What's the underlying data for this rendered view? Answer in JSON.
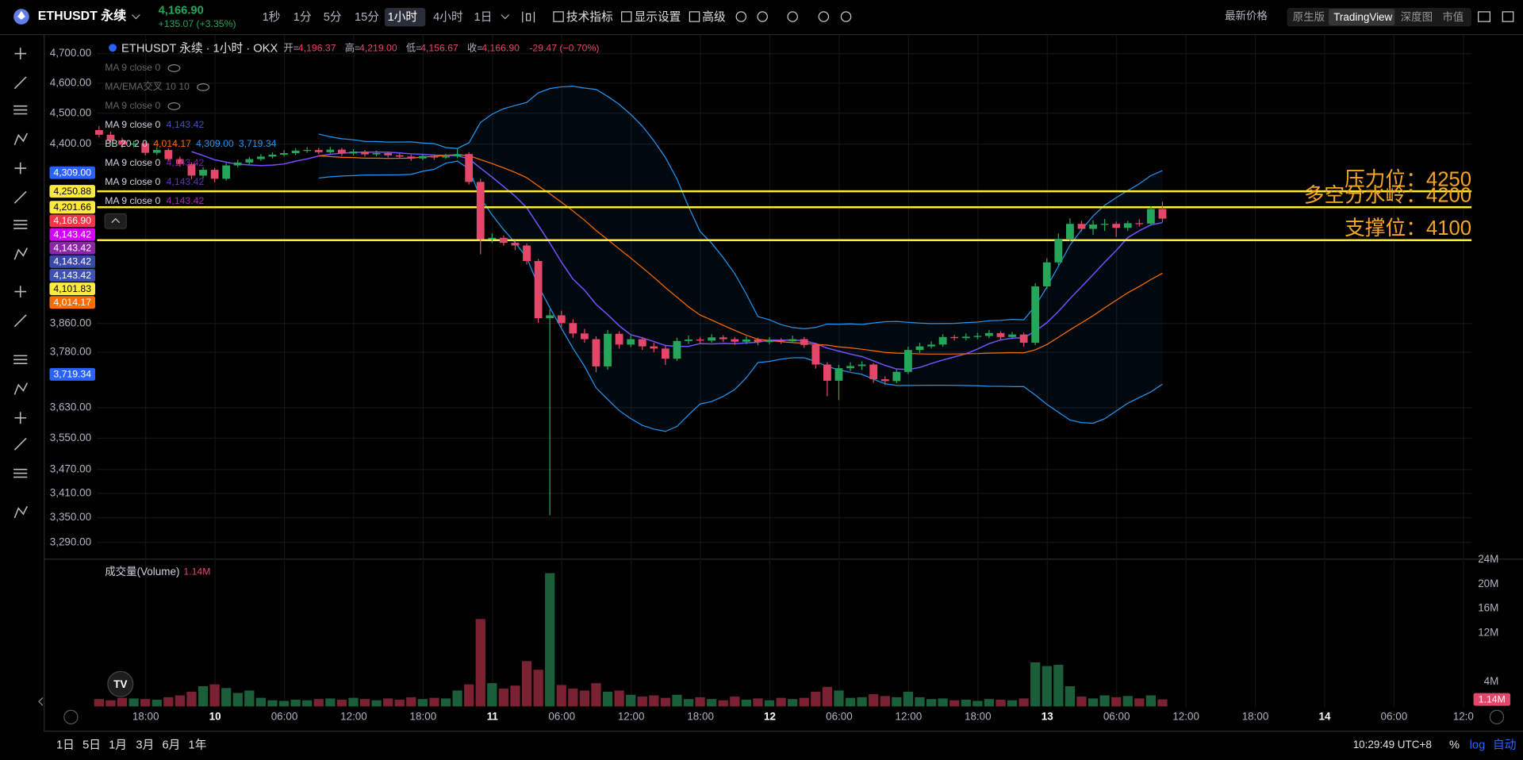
{
  "toolbar": {
    "symbol": "ETHUSDT 永续",
    "price": "4,166.90",
    "change": "+135.07 (+3.35%)",
    "intervals": [
      "1秒",
      "1分",
      "5分",
      "15分",
      "1小时",
      "4小时",
      "1日"
    ],
    "active_interval": "1小时",
    "tools": [
      "技术指标",
      "显示设置",
      "高级"
    ],
    "price_source": "最新价格",
    "views": [
      "原生版",
      "TradingView",
      "深度图",
      "市值"
    ],
    "active_view": "TradingView"
  },
  "legend": {
    "title": "ETHUSDT 永续 · 1小时 · OKX",
    "ohlc": [
      {
        "key": "开=",
        "value": "4,196.37"
      },
      {
        "key": "高=",
        "value": "4,219.00"
      },
      {
        "key": "低=",
        "value": "4,156.67"
      },
      {
        "key": "收=",
        "value": "4,166.90"
      }
    ],
    "change": "-29.47 (−0.70%)",
    "indicators": [
      {
        "text": "MA 9 close 0",
        "hidden": true
      },
      {
        "text": "MA/EMA交叉 10 10",
        "hidden": true
      },
      {
        "text": "MA 9 close 0",
        "hidden": true
      },
      {
        "text": "MA 9 close 0",
        "values": [
          {
            "label": "4,143.42",
            "color": "#3f51b5"
          }
        ]
      },
      {
        "text": "BB 20 2 0",
        "values": [
          {
            "label": "4,014.17",
            "color": "#ff6d00"
          },
          {
            "label": "4,309.00",
            "color": "#2196f3"
          },
          {
            "label": "3,719.34",
            "color": "#2196f3"
          }
        ]
      },
      {
        "text": "MA 9 close 0",
        "values": [
          {
            "label": "4,143.42",
            "color": "#7b1fa2"
          }
        ]
      },
      {
        "text": "MA 9 close 0",
        "values": [
          {
            "label": "4,143.42",
            "color": "#5e35b1"
          }
        ]
      },
      {
        "text": "MA 9 close 0",
        "values": [
          {
            "label": "4,143.42",
            "color": "#9c27b0"
          }
        ]
      }
    ]
  },
  "volume_legend": {
    "title": "成交量(Volume)",
    "value": "1.14M"
  },
  "bottom": {
    "ranges": [
      "1日",
      "5日",
      "1月",
      "3月",
      "6月",
      "1年"
    ],
    "clock": "10:29:49 UTC+8",
    "options": [
      "%",
      "log",
      "自动"
    ]
  },
  "chart_data": {
    "type": "candlestick",
    "log_scale": true,
    "grid": true,
    "up_color": "#26a65b",
    "down_color": "#e5476a",
    "volume_up_color": "#1b5e3a",
    "volume_down_color": "#7a2232",
    "ylim": [
      3251,
      4764
    ],
    "yticks": [
      {
        "value": 4700,
        "label": "4,700.00"
      },
      {
        "value": 4600,
        "label": "4,600.00"
      },
      {
        "value": 4500,
        "label": "4,500.00"
      },
      {
        "value": 4400,
        "label": "4,400.00"
      },
      {
        "value": 3860,
        "label": "3,860.00"
      },
      {
        "value": 3780,
        "label": "3,780.00"
      },
      {
        "value": 3630,
        "label": "3,630.00"
      },
      {
        "value": 3550,
        "label": "3,550.00"
      },
      {
        "value": 3470,
        "label": "3,470.00"
      },
      {
        "value": 3410,
        "label": "3,410.00"
      },
      {
        "value": 3350,
        "label": "3,350.00"
      },
      {
        "value": 3290,
        "label": "3,290.00"
      }
    ],
    "xticks": [
      "18:00",
      "10",
      "06:00",
      "12:00",
      "18:00",
      "11",
      "06:00",
      "12:00",
      "18:00",
      "12",
      "06:00",
      "12:00",
      "18:00",
      "13",
      "06:00",
      "12:00",
      "18:00",
      "14",
      "06:00",
      "12:0"
    ],
    "hlines": [
      {
        "text": "压力位：4250",
        "price": {
          "value": 4250.88,
          "label": "4,250.88"
        },
        "color": "#ffeb3b"
      },
      {
        "text": "多空分水岭：4200",
        "price": {
          "value": 4201.66,
          "label": "4,201.66"
        },
        "color": "#ffeb3b"
      },
      {
        "text": "支撑位：4100",
        "price": {
          "value": 4101.83,
          "label": "4,101.83"
        },
        "color": "#ffeb3b"
      }
    ],
    "annotation_color": "#f5a623",
    "price_badges": [
      {
        "value": 4309,
        "label": "4,309.00",
        "color": "#2962ff"
      },
      {
        "value": 4166.9,
        "label": "4,166.90",
        "color": "#f23645"
      },
      {
        "value": 4143.42,
        "label": "4,143.42",
        "color": "#d500f9"
      },
      {
        "value": 4143.42,
        "label": "4,143.42",
        "color": "#8e24aa"
      },
      {
        "value": 4143.42,
        "label": "4,143.42",
        "color": "#3949ab"
      },
      {
        "value": 4143.42,
        "label": "4,143.42",
        "color": "#3f51b5"
      },
      {
        "value": 4014.17,
        "label": "4,014.17",
        "color": "#ff6d00"
      },
      {
        "value": 3719.34,
        "label": "3,719.34",
        "color": "#2962ff"
      }
    ],
    "indicators": [
      {
        "kind": "ma",
        "period": 9,
        "color": "#7c4dff"
      },
      {
        "kind": "bb",
        "period": 20,
        "mult": 2,
        "color": "#2196f3",
        "basis_color": "#ff6d00"
      }
    ],
    "ohlc": [
      [
        4445,
        4458,
        4422,
        4430
      ],
      [
        4430,
        4440,
        4402,
        4412
      ],
      [
        4412,
        4420,
        4388,
        4398
      ],
      [
        4398,
        4411,
        4390,
        4402
      ],
      [
        4402,
        4408,
        4364,
        4372
      ],
      [
        4372,
        4390,
        4365,
        4381
      ],
      [
        4381,
        4386,
        4344,
        4352
      ],
      [
        4352,
        4360,
        4328,
        4336
      ],
      [
        4336,
        4342,
        4288,
        4300
      ],
      [
        4300,
        4326,
        4292,
        4318
      ],
      [
        4318,
        4324,
        4279,
        4290
      ],
      [
        4290,
        4340,
        4284,
        4332
      ],
      [
        4332,
        4350,
        4326,
        4341
      ],
      [
        4341,
        4359,
        4335,
        4352
      ],
      [
        4352,
        4368,
        4346,
        4360
      ],
      [
        4360,
        4374,
        4354,
        4366
      ],
      [
        4366,
        4380,
        4360,
        4371
      ],
      [
        4371,
        4386,
        4365,
        4379
      ],
      [
        4379,
        4390,
        4372,
        4381
      ],
      [
        4381,
        4388,
        4368,
        4374
      ],
      [
        4374,
        4391,
        4369,
        4382
      ],
      [
        4382,
        4388,
        4362,
        4370
      ],
      [
        4370,
        4384,
        4364,
        4376
      ],
      [
        4376,
        4381,
        4360,
        4367
      ],
      [
        4367,
        4379,
        4361,
        4371
      ],
      [
        4371,
        4376,
        4357,
        4364
      ],
      [
        4364,
        4370,
        4354,
        4360
      ],
      [
        4360,
        4366,
        4347,
        4354
      ],
      [
        4354,
        4369,
        4349,
        4362
      ],
      [
        4362,
        4367,
        4350,
        4357
      ],
      [
        4357,
        4369,
        4352,
        4361
      ],
      [
        4361,
        4386,
        4355,
        4368
      ],
      [
        4368,
        4374,
        4272,
        4280
      ],
      [
        4280,
        4290,
        4060,
        4105
      ],
      [
        4105,
        4122,
        4094,
        4109
      ],
      [
        4109,
        4116,
        4086,
        4094
      ],
      [
        4094,
        4101,
        4072,
        4086
      ],
      [
        4086,
        4092,
        4030,
        4040
      ],
      [
        4040,
        4046,
        3862,
        3875
      ],
      [
        3875,
        3900,
        3356,
        3883
      ],
      [
        3883,
        3896,
        3850,
        3861
      ],
      [
        3861,
        3872,
        3820,
        3832
      ],
      [
        3832,
        3845,
        3806,
        3816
      ],
      [
        3816,
        3824,
        3725,
        3741
      ],
      [
        3741,
        3842,
        3732,
        3831
      ],
      [
        3831,
        3838,
        3790,
        3801
      ],
      [
        3801,
        3826,
        3794,
        3816
      ],
      [
        3816,
        3822,
        3786,
        3796
      ],
      [
        3796,
        3806,
        3780,
        3790
      ],
      [
        3790,
        3798,
        3745,
        3762
      ],
      [
        3762,
        3820,
        3756,
        3811
      ],
      [
        3811,
        3826,
        3803,
        3815
      ],
      [
        3815,
        3822,
        3804,
        3812
      ],
      [
        3812,
        3830,
        3806,
        3821
      ],
      [
        3821,
        3827,
        3808,
        3816
      ],
      [
        3816,
        3822,
        3800,
        3809
      ],
      [
        3809,
        3824,
        3802,
        3815
      ],
      [
        3815,
        3820,
        3799,
        3808
      ],
      [
        3808,
        3822,
        3802,
        3813
      ],
      [
        3813,
        3819,
        3803,
        3810
      ],
      [
        3810,
        3826,
        3805,
        3816
      ],
      [
        3816,
        3822,
        3792,
        3800
      ],
      [
        3800,
        3806,
        3735,
        3746
      ],
      [
        3746,
        3752,
        3660,
        3702
      ],
      [
        3702,
        3745,
        3650,
        3736
      ],
      [
        3736,
        3752,
        3728,
        3742
      ],
      [
        3742,
        3755,
        3731,
        3746
      ],
      [
        3746,
        3750,
        3696,
        3706
      ],
      [
        3706,
        3714,
        3690,
        3701
      ],
      [
        3701,
        3734,
        3695,
        3726
      ],
      [
        3726,
        3795,
        3720,
        3786
      ],
      [
        3786,
        3806,
        3778,
        3796
      ],
      [
        3796,
        3810,
        3790,
        3801
      ],
      [
        3801,
        3830,
        3795,
        3822
      ],
      [
        3822,
        3828,
        3812,
        3819
      ],
      [
        3819,
        3832,
        3813,
        3823
      ],
      [
        3823,
        3834,
        3816,
        3825
      ],
      [
        3825,
        3842,
        3819,
        3833
      ],
      [
        3833,
        3838,
        3815,
        3822
      ],
      [
        3822,
        3836,
        3816,
        3829
      ],
      [
        3829,
        3834,
        3795,
        3806
      ],
      [
        3806,
        3975,
        3800,
        3966
      ],
      [
        3966,
        4048,
        3958,
        4036
      ],
      [
        4036,
        4122,
        4028,
        4106
      ],
      [
        4106,
        4168,
        4098,
        4151
      ],
      [
        4151,
        4160,
        4128,
        4136
      ],
      [
        4136,
        4162,
        4118,
        4149
      ],
      [
        4149,
        4166,
        4130,
        4151
      ],
      [
        4151,
        4158,
        4112,
        4139
      ],
      [
        4139,
        4160,
        4130,
        4153
      ],
      [
        4153,
        4165,
        4143,
        4152
      ],
      [
        4152,
        4205,
        4146,
        4196.37
      ],
      [
        4196.37,
        4219,
        4156.67,
        4166.9
      ]
    ],
    "volume": [
      1.2,
      1.0,
      1.4,
      1.3,
      1.2,
      1.1,
      1.5,
      1.8,
      2.4,
      3.3,
      3.6,
      3.0,
      2.2,
      2.6,
      1.4,
      1.0,
      0.9,
      1.1,
      1.0,
      1.2,
      1.3,
      1.1,
      1.4,
      1.2,
      1.0,
      1.3,
      1.1,
      1.5,
      1.2,
      1.4,
      1.3,
      2.6,
      3.6,
      14.3,
      3.8,
      2.9,
      3.4,
      7.4,
      6.0,
      21.8,
      3.5,
      2.9,
      2.6,
      3.8,
      2.4,
      2.6,
      1.9,
      1.6,
      1.8,
      1.4,
      1.9,
      1.2,
      1.5,
      1.2,
      1.0,
      1.6,
      1.1,
      1.3,
      1.0,
      1.4,
      1.2,
      1.4,
      2.4,
      3.2,
      2.6,
      1.4,
      1.5,
      2.0,
      1.7,
      1.5,
      2.4,
      1.5,
      1.2,
      1.3,
      1.0,
      1.1,
      0.9,
      1.2,
      1.1,
      1.0,
      1.3,
      7.2,
      6.6,
      6.8,
      3.3,
      1.6,
      1.3,
      1.8,
      1.5,
      1.7,
      1.3,
      1.8,
      1.14
    ],
    "volume_ylim": [
      0,
      24
    ],
    "volume_ticks": [
      {
        "value": 24,
        "label": "24M"
      },
      {
        "value": 20,
        "label": "20M"
      },
      {
        "value": 16,
        "label": "16M"
      },
      {
        "value": 12,
        "label": "12M"
      },
      {
        "value": 4,
        "label": "4M"
      }
    ],
    "volume_badge": {
      "value": 1.14,
      "label": "1.14M"
    }
  }
}
